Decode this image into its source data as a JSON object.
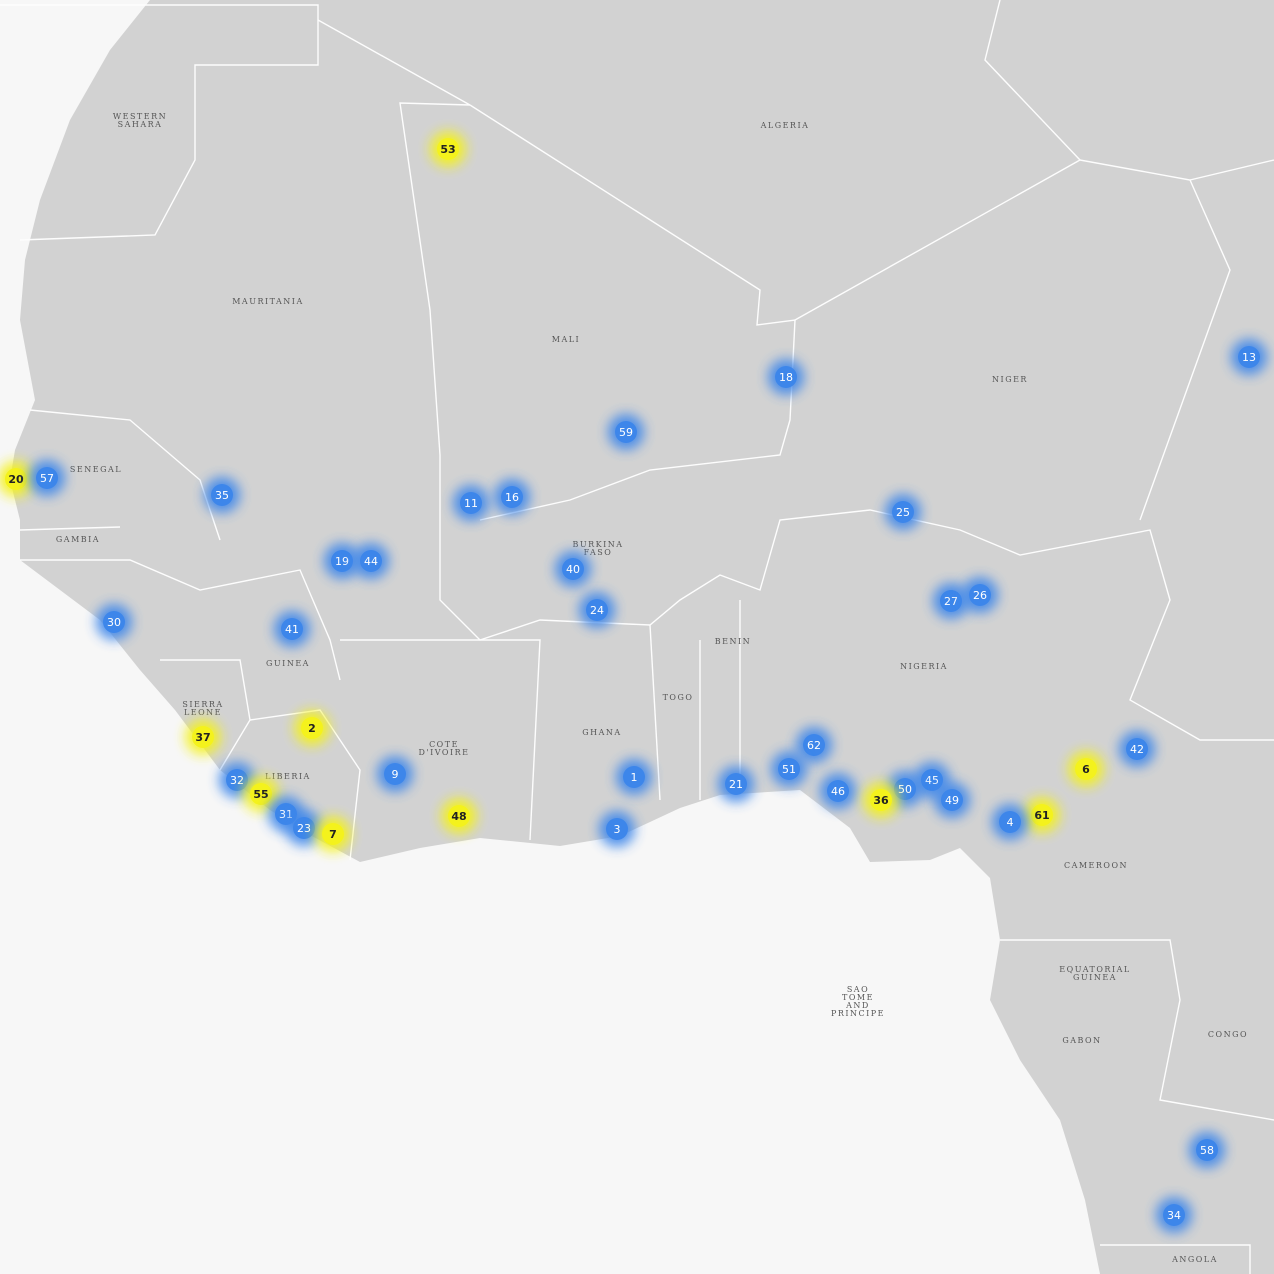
{
  "map": {
    "countries": [
      {
        "lines": [
          "WESTERN",
          "SAHARA"
        ]
      },
      {
        "lines": [
          "ALGERIA"
        ]
      },
      {
        "lines": [
          "MAURITANIA"
        ]
      },
      {
        "lines": [
          "MALI"
        ]
      },
      {
        "lines": [
          "NIGER"
        ]
      },
      {
        "lines": [
          "SENEGAL"
        ]
      },
      {
        "lines": [
          "GAMBIA"
        ]
      },
      {
        "lines": [
          "BURKINA",
          "FASO"
        ]
      },
      {
        "lines": [
          "BENIN"
        ]
      },
      {
        "lines": [
          "GUINEA"
        ]
      },
      {
        "lines": [
          "NIGERIA"
        ]
      },
      {
        "lines": [
          "TOGO"
        ]
      },
      {
        "lines": [
          "SIERRA",
          "LEONE"
        ]
      },
      {
        "lines": [
          "GHANA"
        ]
      },
      {
        "lines": [
          "COTE",
          "D'IVOIRE"
        ]
      },
      {
        "lines": [
          "LIBERIA"
        ]
      },
      {
        "lines": [
          "CAMEROON"
        ]
      },
      {
        "lines": [
          "EQUATORIAL",
          "GUINEA"
        ]
      },
      {
        "lines": [
          "SAO",
          "TOME",
          "AND",
          "PRINCIPE"
        ]
      },
      {
        "lines": [
          "GABON"
        ]
      },
      {
        "lines": [
          "CONGO"
        ]
      },
      {
        "lines": [
          "ANGOLA"
        ]
      }
    ],
    "markers": [
      {
        "label": 53,
        "color": "#f4f21c"
      },
      {
        "label": 18,
        "color": "#3d86ea"
      },
      {
        "label": 13,
        "color": "#3d86ea"
      },
      {
        "label": 59,
        "color": "#3d86ea"
      },
      {
        "label": 20,
        "color": "#f4f21c"
      },
      {
        "label": 57,
        "color": "#3d86ea"
      },
      {
        "label": 35,
        "color": "#3d86ea"
      },
      {
        "label": 11,
        "color": "#3d86ea"
      },
      {
        "label": 16,
        "color": "#3d86ea"
      },
      {
        "label": 25,
        "color": "#3d86ea"
      },
      {
        "label": 19,
        "color": "#3d86ea"
      },
      {
        "label": 44,
        "color": "#3d86ea"
      },
      {
        "label": 40,
        "color": "#3d86ea"
      },
      {
        "label": 27,
        "color": "#3d86ea"
      },
      {
        "label": 26,
        "color": "#3d86ea"
      },
      {
        "label": 24,
        "color": "#3d86ea"
      },
      {
        "label": 30,
        "color": "#3d86ea"
      },
      {
        "label": 41,
        "color": "#3d86ea"
      },
      {
        "label": 2,
        "color": "#f4f21c"
      },
      {
        "label": 37,
        "color": "#f4f21c"
      },
      {
        "label": 62,
        "color": "#3d86ea"
      },
      {
        "label": 42,
        "color": "#3d86ea"
      },
      {
        "label": 6,
        "color": "#f4f21c"
      },
      {
        "label": 9,
        "color": "#3d86ea"
      },
      {
        "label": 1,
        "color": "#3d86ea"
      },
      {
        "label": 21,
        "color": "#3d86ea"
      },
      {
        "label": 51,
        "color": "#3d86ea"
      },
      {
        "label": 45,
        "color": "#3d86ea"
      },
      {
        "label": 50,
        "color": "#3d86ea"
      },
      {
        "label": 32,
        "color": "#3d86ea"
      },
      {
        "label": 55,
        "color": "#f4f21c"
      },
      {
        "label": 46,
        "color": "#3d86ea"
      },
      {
        "label": 36,
        "color": "#f4f21c"
      },
      {
        "label": 49,
        "color": "#3d86ea"
      },
      {
        "label": 31,
        "color": "#3d86ea"
      },
      {
        "label": 23,
        "color": "#3d86ea"
      },
      {
        "label": 7,
        "color": "#f4f21c"
      },
      {
        "label": 48,
        "color": "#f4f21c"
      },
      {
        "label": 61,
        "color": "#f4f21c"
      },
      {
        "label": 4,
        "color": "#3d86ea"
      },
      {
        "label": 3,
        "color": "#3d86ea"
      },
      {
        "label": 58,
        "color": "#3d86ea"
      },
      {
        "label": 34,
        "color": "#3d86ea"
      }
    ]
  }
}
